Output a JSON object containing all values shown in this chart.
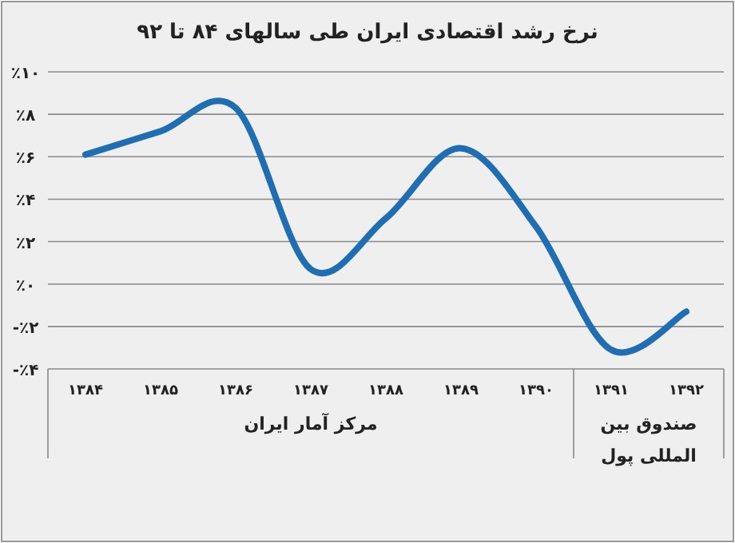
{
  "chart_data": {
    "type": "line",
    "title": "نرخ رشد اقتصادی ایران طی سالهای ۸۴ تا ۹۲",
    "categories": [
      "۱۳۸۴",
      "۱۳۸۵",
      "۱۳۸۶",
      "۱۳۸۷",
      "۱۳۸۸",
      "۱۳۸۹",
      "۱۳۹۰",
      "۱۳۹۱",
      "۱۳۹۲"
    ],
    "series": [
      {
        "color": "#1f6db3",
        "values": [
          6.1,
          7.2,
          8.3,
          0.7,
          3.1,
          6.4,
          2.7,
          -3.1,
          -1.3
        ]
      }
    ],
    "ylim": [
      -4,
      10
    ],
    "yticks": [
      {
        "value": 10,
        "label": "٪۱۰"
      },
      {
        "value": 8,
        "label": "٪۸"
      },
      {
        "value": 6,
        "label": "٪۶"
      },
      {
        "value": 4,
        "label": "٪۴"
      },
      {
        "value": 2,
        "label": "٪۲"
      },
      {
        "value": 0,
        "label": "٪۰"
      },
      {
        "value": -2,
        "label": "-٪۲"
      },
      {
        "value": -4,
        "label": "-٪۴"
      }
    ],
    "grid": "y",
    "marker": "none",
    "line_style": "solid",
    "annotations": [
      "مرکز آمار ایران",
      "صندوق بین المللی پول"
    ]
  }
}
